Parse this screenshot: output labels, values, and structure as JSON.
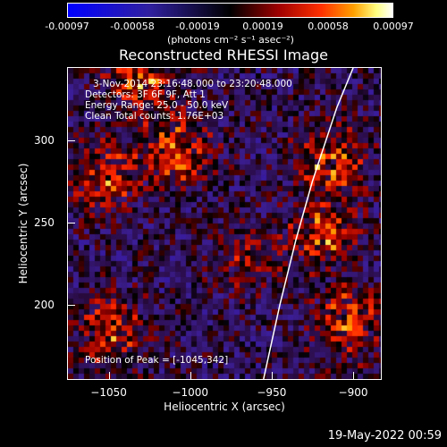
{
  "chart_data": {
    "type": "heatmap",
    "title": "Reconstructed RHESSI Image",
    "xlabel": "Heliocentric X (arcsec)",
    "ylabel": "Heliocentric Y (arcsec)",
    "xlim": [
      -1075,
      -883
    ],
    "ylim": [
      155,
      344
    ],
    "x_ticks": [
      "-1050",
      "-1000",
      "-950",
      "-900"
    ],
    "y_ticks": [
      "200",
      "250",
      "300"
    ],
    "colorbar": {
      "ticks": [
        "-0.00097",
        "-0.00058",
        "-0.00019",
        "0.00019",
        "0.00058",
        "0.00097"
      ],
      "unit": "(photons cm⁻² s⁻¹ asec⁻²)",
      "min": -0.00097,
      "max": 0.00097
    },
    "annotations": {
      "time_range": "3-Nov-2014 23:16:48.000 to 23:20:48.000",
      "detectors": "Detectors: 3F 6F 9F, Att 1",
      "energy": "Energy Range: 25.0 - 50.0 keV",
      "algorithm": "Clean     Total counts: 1.76E+03",
      "peak": "Position of Peak = [-1045,342]"
    },
    "limb_curve": [
      [
        -955,
        155
      ],
      [
        -945,
        200
      ],
      [
        -935,
        240
      ],
      [
        -925,
        275
      ],
      [
        -910,
        320
      ],
      [
        -900,
        344
      ]
    ],
    "hot_regions": [
      {
        "x": -1055,
        "y": 280,
        "v": 0.0006
      },
      {
        "x": -1010,
        "y": 295,
        "v": 0.0007
      },
      {
        "x": -915,
        "y": 290,
        "v": 0.0007
      },
      {
        "x": -920,
        "y": 245,
        "v": 0.0006
      },
      {
        "x": -905,
        "y": 190,
        "v": 0.0007
      },
      {
        "x": -1050,
        "y": 185,
        "v": 0.0006
      },
      {
        "x": -1030,
        "y": 340,
        "v": 0.0007
      },
      {
        "x": -965,
        "y": 230,
        "v": 0.0004
      }
    ],
    "colors": {
      "min": "#0000ff",
      "mid": "#000000",
      "max": "#ffffff"
    }
  },
  "footer": {
    "date": "19-May-2022 00:59"
  }
}
